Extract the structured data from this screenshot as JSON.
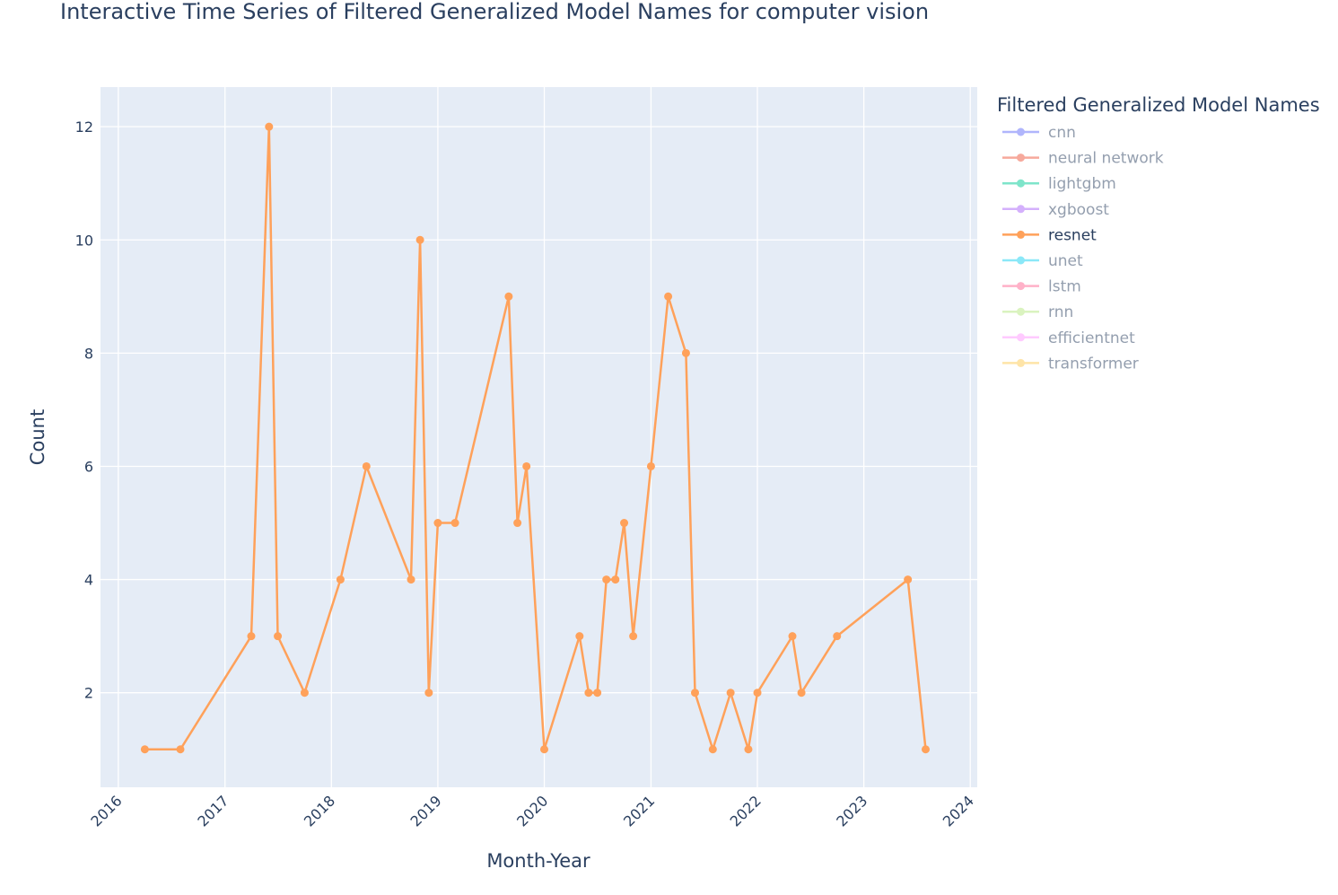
{
  "chart_data": {
    "type": "line",
    "title": "Interactive Time Series of Filtered Generalized Model Names for computer vision",
    "xlabel": "Month-Year",
    "ylabel": "Count",
    "xlim": [
      "2015-11-01",
      "2024-01-25"
    ],
    "ylim": [
      0.33,
      12.7
    ],
    "x_ticks": [
      "2016",
      "2017",
      "2018",
      "2019",
      "2020",
      "2021",
      "2022",
      "2023",
      "2024"
    ],
    "y_ticks": [
      2,
      4,
      6,
      8,
      10,
      12
    ],
    "grid": true,
    "legend": {
      "title": "Filtered Generalized Model Names",
      "position": "right",
      "items": [
        {
          "name": "cnn",
          "color": "#636efa",
          "visible": false
        },
        {
          "name": "neural network",
          "color": "#ef553b",
          "visible": false
        },
        {
          "name": "lightgbm",
          "color": "#00cc96",
          "visible": false
        },
        {
          "name": "xgboost",
          "color": "#ab63fa",
          "visible": false
        },
        {
          "name": "resnet",
          "color": "#ffa15a",
          "visible": true
        },
        {
          "name": "unet",
          "color": "#19d3f3",
          "visible": false
        },
        {
          "name": "lstm",
          "color": "#ff6692",
          "visible": false
        },
        {
          "name": "rnn",
          "color": "#b6e880",
          "visible": false
        },
        {
          "name": "efficientnet",
          "color": "#ff97ff",
          "visible": false
        },
        {
          "name": "transformer",
          "color": "#fecb52",
          "visible": false
        }
      ]
    },
    "series": [
      {
        "name": "resnet",
        "color": "#ffa15a",
        "points": [
          [
            "2016-04-01",
            1
          ],
          [
            "2016-08-01",
            1
          ],
          [
            "2017-04-01",
            3
          ],
          [
            "2017-06-01",
            12
          ],
          [
            "2017-07-01",
            3
          ],
          [
            "2017-10-01",
            2
          ],
          [
            "2018-02-01",
            4
          ],
          [
            "2018-05-01",
            6
          ],
          [
            "2018-10-01",
            4
          ],
          [
            "2018-11-01",
            10
          ],
          [
            "2018-12-01",
            2
          ],
          [
            "2019-01-01",
            5
          ],
          [
            "2019-03-01",
            5
          ],
          [
            "2019-09-01",
            9
          ],
          [
            "2019-10-01",
            5
          ],
          [
            "2019-11-01",
            6
          ],
          [
            "2020-01-01",
            1
          ],
          [
            "2020-05-01",
            3
          ],
          [
            "2020-06-01",
            2
          ],
          [
            "2020-07-01",
            2
          ],
          [
            "2020-08-01",
            4
          ],
          [
            "2020-09-01",
            4
          ],
          [
            "2020-10-01",
            5
          ],
          [
            "2020-11-01",
            3
          ],
          [
            "2021-01-01",
            6
          ],
          [
            "2021-03-01",
            9
          ],
          [
            "2021-05-01",
            8
          ],
          [
            "2021-06-01",
            2
          ],
          [
            "2021-08-01",
            1
          ],
          [
            "2021-10-01",
            2
          ],
          [
            "2021-12-01",
            1
          ],
          [
            "2022-01-01",
            2
          ],
          [
            "2022-05-01",
            3
          ],
          [
            "2022-06-01",
            2
          ],
          [
            "2022-10-01",
            3
          ],
          [
            "2023-06-01",
            4
          ],
          [
            "2023-08-01",
            1
          ]
        ]
      }
    ]
  }
}
